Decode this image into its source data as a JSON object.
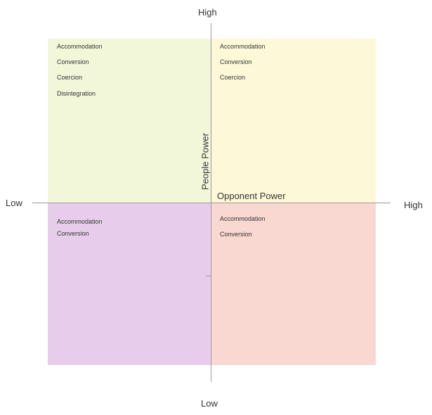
{
  "axes": {
    "y_high": "High",
    "y_low": "Low",
    "x_low": "Low",
    "x_high": "High",
    "y_name": "People Power",
    "x_name": "Opponent Power"
  },
  "quadrants": {
    "top_left": {
      "color": "#f2f7da",
      "items": [
        "Accommodation",
        "Conversion",
        "Coercion",
        "Disintegration"
      ]
    },
    "top_right": {
      "color": "#fdf9d8",
      "items": [
        "Accommodation",
        "Conversion",
        "Coercion"
      ]
    },
    "bottom_left": {
      "color": "#e7cdeb",
      "items": [
        "Accommodation",
        "Conversion"
      ]
    },
    "bottom_right": {
      "color": "#f9d8d1",
      "items": [
        "Accommodation",
        "Conversion"
      ]
    }
  }
}
